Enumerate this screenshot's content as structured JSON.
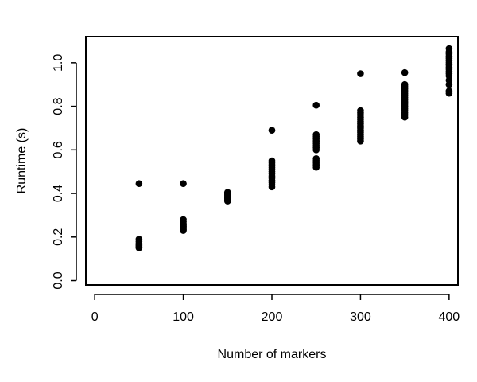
{
  "chart_data": {
    "type": "scatter",
    "xlabel": "Number of markers",
    "ylabel": "Runtime (s)",
    "xlim": [
      -10,
      410
    ],
    "ylim": [
      -0.02,
      1.12
    ],
    "x_ticks": [
      0,
      100,
      200,
      300,
      400
    ],
    "x_tick_labels": [
      "0",
      "100",
      "200",
      "300",
      "400"
    ],
    "y_ticks": [
      0.0,
      0.2,
      0.4,
      0.6,
      0.8,
      1.0
    ],
    "y_tick_labels": [
      "0.0",
      "0.2",
      "0.4",
      "0.6",
      "0.8",
      "1.0"
    ],
    "grid": false,
    "point_color": "#000000",
    "points": [
      {
        "x": 50,
        "y": 0.445
      },
      {
        "x": 50,
        "y": 0.19
      },
      {
        "x": 50,
        "y": 0.18
      },
      {
        "x": 50,
        "y": 0.17
      },
      {
        "x": 50,
        "y": 0.165
      },
      {
        "x": 50,
        "y": 0.16
      },
      {
        "x": 50,
        "y": 0.155
      },
      {
        "x": 50,
        "y": 0.15
      },
      {
        "x": 100,
        "y": 0.445
      },
      {
        "x": 100,
        "y": 0.28
      },
      {
        "x": 100,
        "y": 0.27
      },
      {
        "x": 100,
        "y": 0.26
      },
      {
        "x": 100,
        "y": 0.255
      },
      {
        "x": 100,
        "y": 0.25
      },
      {
        "x": 100,
        "y": 0.245
      },
      {
        "x": 100,
        "y": 0.24
      },
      {
        "x": 100,
        "y": 0.235
      },
      {
        "x": 100,
        "y": 0.23
      },
      {
        "x": 150,
        "y": 0.405
      },
      {
        "x": 150,
        "y": 0.4
      },
      {
        "x": 150,
        "y": 0.395
      },
      {
        "x": 150,
        "y": 0.39
      },
      {
        "x": 150,
        "y": 0.385
      },
      {
        "x": 150,
        "y": 0.38
      },
      {
        "x": 150,
        "y": 0.375
      },
      {
        "x": 150,
        "y": 0.37
      },
      {
        "x": 150,
        "y": 0.365
      },
      {
        "x": 200,
        "y": 0.69
      },
      {
        "x": 200,
        "y": 0.55
      },
      {
        "x": 200,
        "y": 0.54
      },
      {
        "x": 200,
        "y": 0.53
      },
      {
        "x": 200,
        "y": 0.52
      },
      {
        "x": 200,
        "y": 0.51
      },
      {
        "x": 200,
        "y": 0.5
      },
      {
        "x": 200,
        "y": 0.49
      },
      {
        "x": 200,
        "y": 0.48
      },
      {
        "x": 200,
        "y": 0.47
      },
      {
        "x": 200,
        "y": 0.46
      },
      {
        "x": 200,
        "y": 0.45
      },
      {
        "x": 200,
        "y": 0.44
      },
      {
        "x": 200,
        "y": 0.43
      },
      {
        "x": 250,
        "y": 0.805
      },
      {
        "x": 250,
        "y": 0.67
      },
      {
        "x": 250,
        "y": 0.66
      },
      {
        "x": 250,
        "y": 0.65
      },
      {
        "x": 250,
        "y": 0.64
      },
      {
        "x": 250,
        "y": 0.63
      },
      {
        "x": 250,
        "y": 0.62
      },
      {
        "x": 250,
        "y": 0.61
      },
      {
        "x": 250,
        "y": 0.6
      },
      {
        "x": 250,
        "y": 0.56
      },
      {
        "x": 250,
        "y": 0.55
      },
      {
        "x": 250,
        "y": 0.54
      },
      {
        "x": 250,
        "y": 0.53
      },
      {
        "x": 250,
        "y": 0.52
      },
      {
        "x": 300,
        "y": 0.95
      },
      {
        "x": 300,
        "y": 0.78
      },
      {
        "x": 300,
        "y": 0.77
      },
      {
        "x": 300,
        "y": 0.76
      },
      {
        "x": 300,
        "y": 0.75
      },
      {
        "x": 300,
        "y": 0.74
      },
      {
        "x": 300,
        "y": 0.73
      },
      {
        "x": 300,
        "y": 0.72
      },
      {
        "x": 300,
        "y": 0.71
      },
      {
        "x": 300,
        "y": 0.7
      },
      {
        "x": 300,
        "y": 0.69
      },
      {
        "x": 300,
        "y": 0.68
      },
      {
        "x": 300,
        "y": 0.67
      },
      {
        "x": 300,
        "y": 0.66
      },
      {
        "x": 300,
        "y": 0.65
      },
      {
        "x": 300,
        "y": 0.64
      },
      {
        "x": 350,
        "y": 0.955
      },
      {
        "x": 350,
        "y": 0.9
      },
      {
        "x": 350,
        "y": 0.89
      },
      {
        "x": 350,
        "y": 0.88
      },
      {
        "x": 350,
        "y": 0.87
      },
      {
        "x": 350,
        "y": 0.86
      },
      {
        "x": 350,
        "y": 0.85
      },
      {
        "x": 350,
        "y": 0.84
      },
      {
        "x": 350,
        "y": 0.83
      },
      {
        "x": 350,
        "y": 0.82
      },
      {
        "x": 350,
        "y": 0.81
      },
      {
        "x": 350,
        "y": 0.8
      },
      {
        "x": 350,
        "y": 0.79
      },
      {
        "x": 350,
        "y": 0.78
      },
      {
        "x": 350,
        "y": 0.77
      },
      {
        "x": 350,
        "y": 0.76
      },
      {
        "x": 350,
        "y": 0.75
      },
      {
        "x": 400,
        "y": 1.065
      },
      {
        "x": 400,
        "y": 1.05
      },
      {
        "x": 400,
        "y": 1.04
      },
      {
        "x": 400,
        "y": 1.03
      },
      {
        "x": 400,
        "y": 1.02
      },
      {
        "x": 400,
        "y": 1.01
      },
      {
        "x": 400,
        "y": 1.0
      },
      {
        "x": 400,
        "y": 0.99
      },
      {
        "x": 400,
        "y": 0.98
      },
      {
        "x": 400,
        "y": 0.97
      },
      {
        "x": 400,
        "y": 0.96
      },
      {
        "x": 400,
        "y": 0.95
      },
      {
        "x": 400,
        "y": 0.94
      },
      {
        "x": 400,
        "y": 0.92
      },
      {
        "x": 400,
        "y": 0.9
      },
      {
        "x": 400,
        "y": 0.87
      },
      {
        "x": 400,
        "y": 0.86
      }
    ]
  }
}
